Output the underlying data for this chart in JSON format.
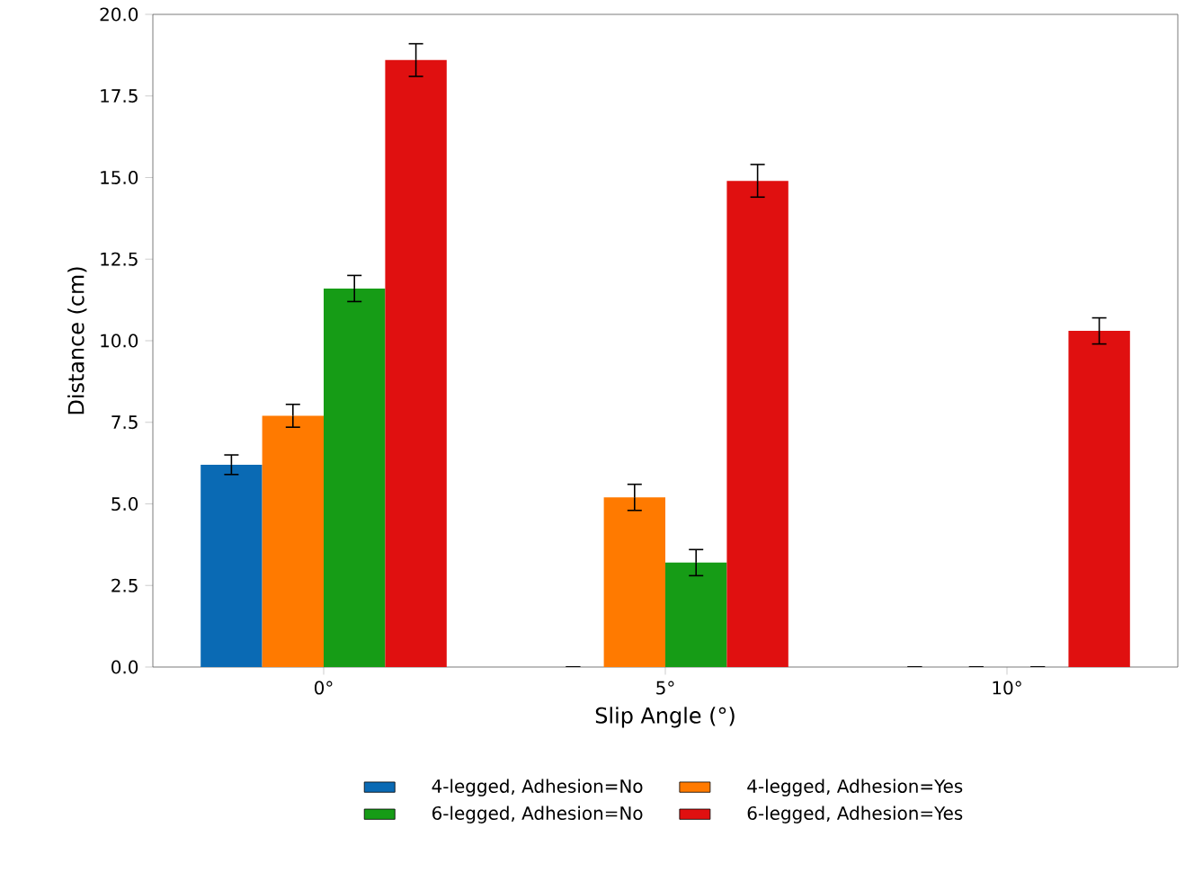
{
  "chart_data": {
    "type": "bar",
    "xlabel": "Slip Angle (°)",
    "ylabel": "Distance (cm)",
    "categories": [
      "0°",
      "5°",
      "10°"
    ],
    "ylim": [
      0,
      20
    ],
    "yticks": [
      {
        "value": 0,
        "label": "0.0"
      },
      {
        "value": 2.5,
        "label": "2.5"
      },
      {
        "value": 5,
        "label": "5.0"
      },
      {
        "value": 7.5,
        "label": "7.5"
      },
      {
        "value": 10,
        "label": "10.0"
      },
      {
        "value": 12.5,
        "label": "12.5"
      },
      {
        "value": 15,
        "label": "15.0"
      },
      {
        "value": 17.5,
        "label": "17.5"
      },
      {
        "value": 20,
        "label": "20.0"
      }
    ],
    "legend": "bottom",
    "series": [
      {
        "name": "4-legged, Adhesion=No",
        "color": "#0a6ab4",
        "values": [
          6.2,
          0,
          0
        ],
        "errors": [
          0.3,
          null,
          null
        ]
      },
      {
        "name": "4-legged, Adhesion=Yes",
        "color": "#ff7a00",
        "values": [
          7.7,
          5.2,
          0
        ],
        "errors": [
          0.35,
          0.4,
          null
        ]
      },
      {
        "name": "6-legged, Adhesion=No",
        "color": "#169c16",
        "values": [
          11.6,
          3.2,
          0
        ],
        "errors": [
          0.4,
          0.4,
          null
        ]
      },
      {
        "name": "6-legged, Adhesion=Yes",
        "color": "#e01010",
        "values": [
          18.6,
          14.9,
          10.3
        ],
        "errors": [
          0.5,
          0.5,
          0.4
        ]
      }
    ]
  }
}
